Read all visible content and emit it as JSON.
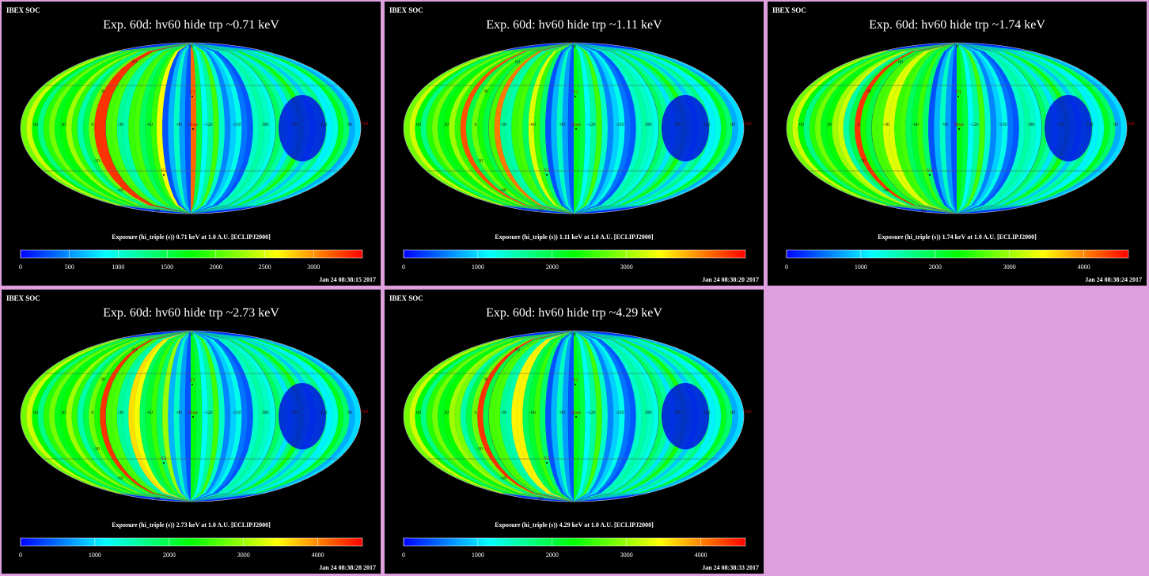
{
  "panels": [
    {
      "header": "IBEX SOC",
      "title": "Exp.   60d: hv60 hide trp ~0.71 keV",
      "caption": "Exposure (hi_triple (s))  0.71 keV at 1.0 A.U. [ECLIPJ2000]",
      "timestamp": "Jan 24 08:38:15 2017",
      "colorbar": {
        "min": 0,
        "max": 3500,
        "ticks": [
          "0",
          "500",
          "1000",
          "1500",
          "2000",
          "2500",
          "3000"
        ],
        "tick_values": [
          0,
          500,
          1000,
          1500,
          2000,
          2500,
          3000
        ]
      },
      "strip_profile": "e071"
    },
    {
      "header": "IBEX SOC",
      "title": "Exp.   60d: hv60 hide trp ~1.11 keV",
      "caption": "Exposure (hi_triple (s))  1.11 keV at 1.0 A.U. [ECLIPJ2000]",
      "timestamp": "Jan 24 08:38:20 2017",
      "colorbar": {
        "min": 0,
        "max": 4600,
        "ticks": [
          "0",
          "1000",
          "2000",
          "3000"
        ],
        "tick_values": [
          0,
          1000,
          2000,
          3000
        ]
      },
      "strip_profile": "e111"
    },
    {
      "header": "IBEX SOC",
      "title": "Exp.   60d: hv60 hide trp ~1.74 keV",
      "caption": "Exposure (hi_triple (s))  1.74 keV at 1.0 A.U. [ECLIPJ2000]",
      "timestamp": "Jan 24 08:38:24 2017",
      "colorbar": {
        "min": 0,
        "max": 4600,
        "ticks": [
          "0",
          "1000",
          "2000",
          "3000",
          "4000"
        ],
        "tick_values": [
          0,
          1000,
          2000,
          3000,
          4000
        ]
      },
      "strip_profile": "e174"
    },
    {
      "header": "IBEX SOC",
      "title": "Exp.   60d: hv60 hide trp ~2.73 keV",
      "caption": "Exposure (hi_triple (s))  2.73 keV at 1.0 A.U. [ECLIPJ2000]",
      "timestamp": "Jan 24 08:38:28 2017",
      "colorbar": {
        "min": 0,
        "max": 4600,
        "ticks": [
          "0",
          "1000",
          "2000",
          "3000",
          "4000"
        ],
        "tick_values": [
          0,
          1000,
          2000,
          3000,
          4000
        ]
      },
      "strip_profile": "e273"
    },
    {
      "header": "IBEX SOC",
      "title": "Exp.   60d: hv60 hide trp ~4.29 keV",
      "caption": "Exposure (hi_triple (s))  4.29 keV at 1.0 A.U. [ECLIPJ2000]",
      "timestamp": "Jan 24 08:38:33 2017",
      "colorbar": {
        "min": 0,
        "max": 4600,
        "ticks": [
          "0",
          "1000",
          "2000",
          "3000",
          "4000"
        ],
        "tick_values": [
          0,
          1000,
          2000,
          3000,
          4000
        ]
      },
      "strip_profile": "e429"
    }
  ],
  "map_labels": {
    "longitudes": [
      "60",
      "30",
      "0",
      "-30",
      "-60",
      "-90",
      "-120",
      "-150",
      "180",
      "150",
      "120",
      "90"
    ],
    "latitudes": [
      "60",
      "30",
      "-30",
      "-60"
    ],
    "pole_top": "90",
    "pole_bottom": "-90",
    "markers": {
      "v1": "V1",
      "v2": "V2",
      "nose": "Nose",
      "tail": "Tail"
    }
  },
  "colors": {
    "background": "#dda0dd",
    "panel": "#000000",
    "colormap": [
      "#0000ff",
      "#00ffff",
      "#00ff00",
      "#ffff00",
      "#ff0000"
    ]
  }
}
